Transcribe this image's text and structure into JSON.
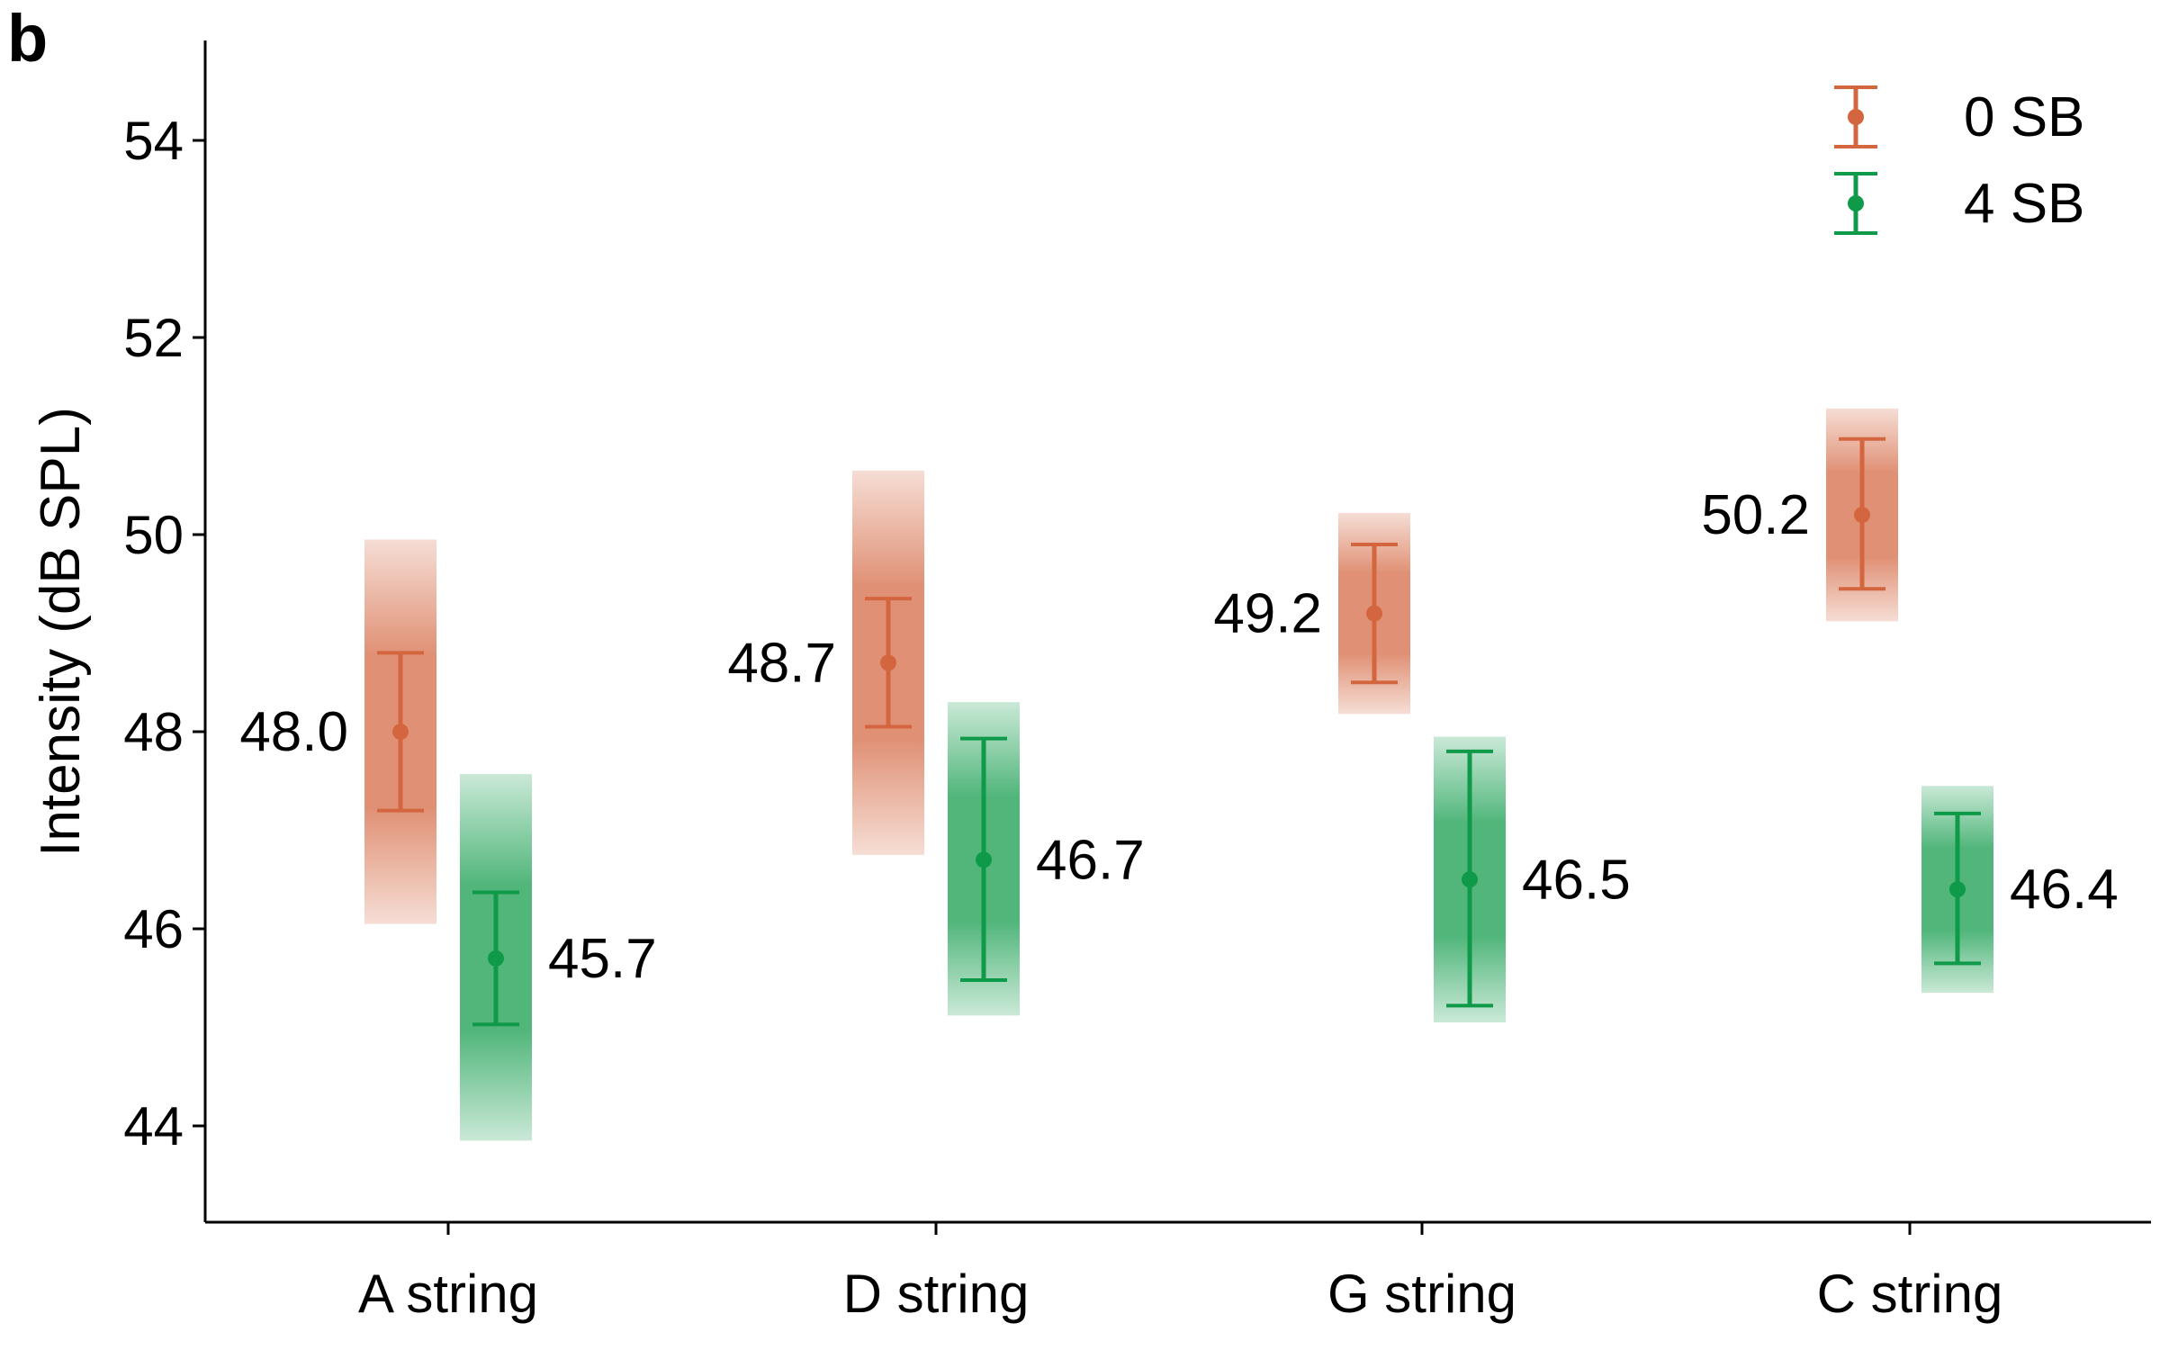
{
  "panel_label": "b",
  "chart_data": {
    "type": "scatter",
    "ylabel": "Intensity (dB SPL)",
    "xlabel": "",
    "ylim": [
      43,
      55
    ],
    "yticks": [
      "44",
      "46",
      "48",
      "50",
      "52",
      "54"
    ],
    "categories": [
      "A string",
      "D string",
      "G string",
      "C string"
    ],
    "legend_position": "top-right",
    "grid": false,
    "series": [
      {
        "name": "0 SB",
        "color": "#d4663f",
        "values": [
          48.0,
          48.7,
          49.2,
          50.2
        ],
        "labels": [
          "48.0",
          "48.7",
          "49.2",
          "50.2"
        ],
        "error_low": [
          47.2,
          48.05,
          48.5,
          49.45
        ],
        "error_high": [
          48.8,
          49.35,
          49.9,
          50.97
        ],
        "band_low": [
          46.05,
          46.75,
          48.18,
          49.12
        ],
        "band_high": [
          49.95,
          50.65,
          50.22,
          51.28
        ]
      },
      {
        "name": "4 SB",
        "color": "#0e9a48",
        "values": [
          45.7,
          46.7,
          46.5,
          46.4
        ],
        "labels": [
          "45.7",
          "46.7",
          "46.5",
          "46.4"
        ],
        "error_low": [
          45.03,
          45.48,
          45.22,
          45.65
        ],
        "error_high": [
          46.37,
          47.93,
          47.8,
          47.17
        ],
        "band_low": [
          43.85,
          45.12,
          45.05,
          45.35
        ],
        "band_high": [
          47.57,
          48.3,
          47.95,
          47.45
        ]
      }
    ]
  }
}
